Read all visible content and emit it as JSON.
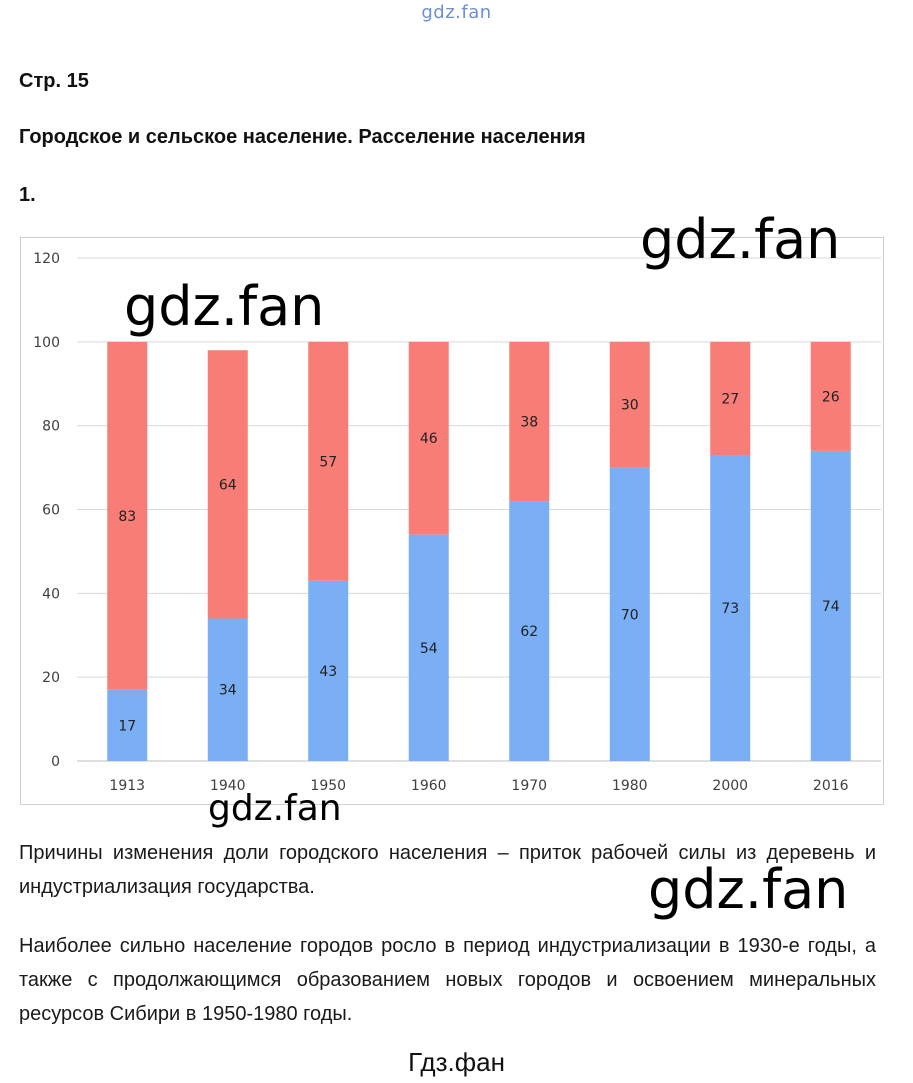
{
  "header": {
    "site_mark": "gdz.fan",
    "page_label": "Стр. 15",
    "section_title": "Городское и сельское население. Расселение населения",
    "task_number": "1."
  },
  "watermarks": [
    "gdz.fan",
    "gdz.fan",
    "gdz.fan",
    "gdz.fan"
  ],
  "colors": {
    "urban": "#7aaff5",
    "rural": "#f87d76",
    "grid": "#d9d9d9",
    "axis_text": "#404040"
  },
  "chart_data": {
    "type": "bar",
    "stacked": true,
    "categories": [
      "1913",
      "1940",
      "1950",
      "1960",
      "1970",
      "1980",
      "2000",
      "2016"
    ],
    "series": [
      {
        "values": [
          17,
          34,
          43,
          54,
          62,
          70,
          73,
          74
        ],
        "color": "#7aaff5"
      },
      {
        "values": [
          83,
          64,
          57,
          46,
          38,
          30,
          27,
          26
        ],
        "color": "#f87d76"
      }
    ],
    "ylim": [
      0,
      120
    ],
    "yticks": [
      0,
      20,
      40,
      60,
      80,
      100,
      120
    ],
    "grid": true,
    "legend": "none",
    "data_labels": true
  },
  "text": {
    "paragraph_1": "Причины изменения доли городского населения – приток рабочей силы из деревень и индустриализация государства.",
    "paragraph_2": "Наиболее сильно население городов росло в период индустриализации в 1930-е годы, а также с продолжающимся образованием новых городов и освоением минеральных ресурсов Сибири в 1950-1980 годы."
  },
  "footer": {
    "site_mark": "Гдз.фан"
  }
}
